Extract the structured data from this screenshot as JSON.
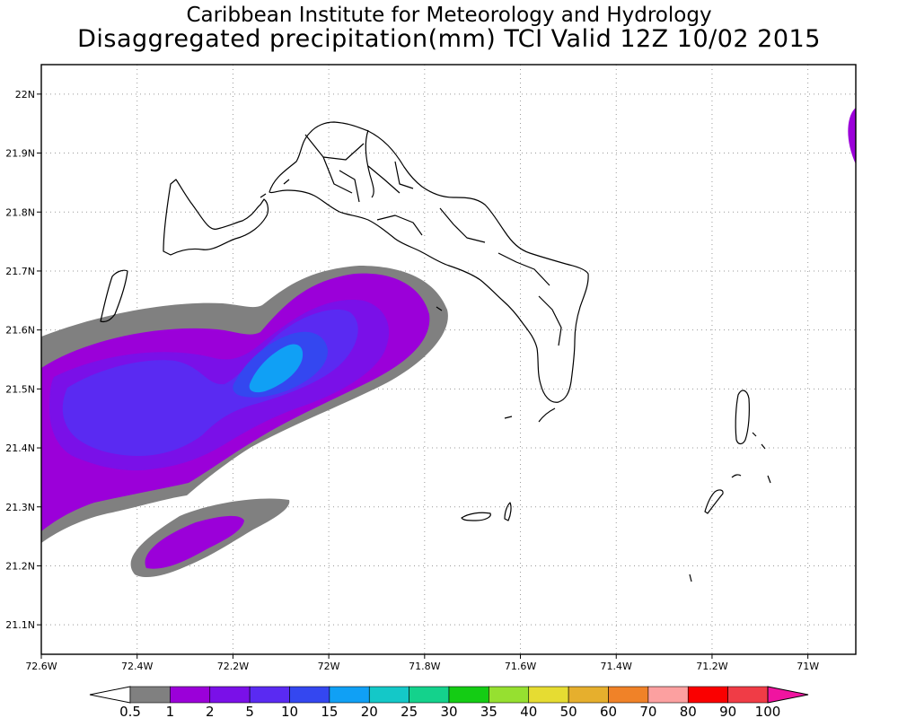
{
  "title": "Caribbean Institute for Meteorology and Hydrology",
  "subtitle": "Disaggregated precipitation(mm) TCI Valid 12Z 10/02 2015",
  "map": {
    "region": "Turks and Caicos Islands",
    "lon_range": [
      -72.6,
      -70.9
    ],
    "lat_range": [
      21.05,
      22.05
    ],
    "lon_ticks": [
      {
        "value": -72.6,
        "label": "72.6W"
      },
      {
        "value": -72.4,
        "label": "72.4W"
      },
      {
        "value": -72.2,
        "label": "72.2W"
      },
      {
        "value": -72.0,
        "label": "72W"
      },
      {
        "value": -71.8,
        "label": "71.8W"
      },
      {
        "value": -71.6,
        "label": "71.6W"
      },
      {
        "value": -71.4,
        "label": "71.4W"
      },
      {
        "value": -71.2,
        "label": "71.2W"
      },
      {
        "value": -71.0,
        "label": "71W"
      }
    ],
    "lat_ticks": [
      {
        "value": 22.0,
        "label": "22N"
      },
      {
        "value": 21.9,
        "label": "21.9N"
      },
      {
        "value": 21.8,
        "label": "21.8N"
      },
      {
        "value": 21.7,
        "label": "21.7N"
      },
      {
        "value": 21.6,
        "label": "21.6N"
      },
      {
        "value": 21.5,
        "label": "21.5N"
      },
      {
        "value": 21.4,
        "label": "21.4N"
      },
      {
        "value": 21.3,
        "label": "21.3N"
      },
      {
        "value": 21.2,
        "label": "21.2N"
      },
      {
        "value": 21.1,
        "label": "21.1N"
      }
    ],
    "grid": "dotted"
  },
  "legend": {
    "levels": [
      "0.5",
      "1",
      "2",
      "5",
      "10",
      "15",
      "20",
      "25",
      "30",
      "35",
      "40",
      "50",
      "60",
      "70",
      "80",
      "90",
      "100"
    ],
    "colors": [
      "#ffffff",
      "#808080",
      "#9b00d9",
      "#7a10e8",
      "#5a2af2",
      "#3447f0",
      "#10a0f5",
      "#14c8c8",
      "#14d28c",
      "#14cc14",
      "#96e030",
      "#e6dc32",
      "#e6af2d",
      "#f08228",
      "#fca0a0",
      "#fa0000",
      "#f03c46",
      "#f014a0"
    ]
  }
}
